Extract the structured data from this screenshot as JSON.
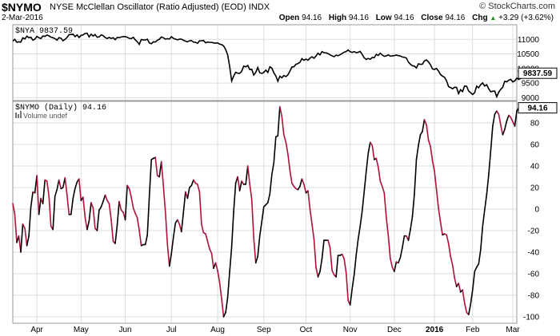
{
  "header": {
    "symbol": "$NYMO",
    "description": "NYSE McClellan Oscillator (Ratio Adjusted) (EOD)  INDX",
    "brand": "© StockCharts.com",
    "date": "2-Mar-2016",
    "open_label": "Open",
    "open": "94.16",
    "high_label": "High",
    "high": "94.16",
    "low_label": "Low",
    "low": "94.16",
    "close_label": "Close",
    "close": "94.16",
    "chg_label": "Chg",
    "chg": "+3.29 (+3.62%)",
    "chg_arrow": "▲"
  },
  "colors": {
    "up": "#000000",
    "down": "#b0103a",
    "grid": "#dddddd",
    "frame": "#999999"
  },
  "chart_data": [
    {
      "type": "line",
      "legend": "$NYA 9837.59",
      "last_value_label": "9837.59",
      "ylim": [
        8900,
        11500
      ],
      "y_ticks": [
        9000,
        9500,
        10000,
        10500,
        11000
      ],
      "x_tick_labels": [
        "Apr",
        "May",
        "Jun",
        "Jul",
        "Aug",
        "Sep",
        "Oct",
        "Nov",
        "Dec",
        "2016",
        "Feb",
        "Mar"
      ],
      "x_tick_index": [
        12,
        34,
        56,
        79,
        102,
        125,
        146,
        168,
        190,
        210,
        229,
        249
      ],
      "n_points": 252,
      "values": [
        10940,
        10998,
        10898,
        10916,
        10903,
        11051,
        11014,
        11108,
        11055,
        11069,
        10973,
        11008,
        11100,
        11054,
        11029,
        11114,
        11101,
        11143,
        11119,
        11075,
        11053,
        11025,
        10973,
        11058,
        11040,
        10953,
        10999,
        11063,
        11160,
        11165,
        11175,
        11093,
        11151,
        11061,
        11133,
        11151,
        11202,
        11210,
        11083,
        11176,
        11112,
        11163,
        11074,
        11084,
        11149,
        11128,
        11059,
        11030,
        11066,
        11032,
        11054,
        10987,
        11064,
        11059,
        11079,
        11093,
        11096,
        11067,
        11035,
        11024,
        11070,
        10984,
        10916,
        10827,
        10994,
        10984,
        10978,
        11005,
        10879,
        10849,
        10915,
        10906,
        10969,
        11002,
        11081,
        11053,
        11006,
        11020,
        11010,
        11090,
        11033,
        11007,
        10983,
        11004,
        11007,
        10969,
        10936,
        10914,
        10951,
        10957,
        10907,
        10899,
        10861,
        10946,
        10953,
        10960,
        10880,
        10906,
        10897,
        10893,
        10878,
        10864,
        10879,
        10834,
        10819,
        10773,
        10649,
        10463,
        10065,
        9572,
        9740,
        9868,
        9840,
        9833,
        9905,
        10080,
        10054,
        10101,
        9965,
        9971,
        9774,
        9867,
        10032,
        9856,
        9831,
        9862,
        9945,
        9863,
        10057,
        10013,
        9853,
        9744,
        9561,
        9734,
        9683,
        9757,
        9725,
        9783,
        9910,
        10050,
        10060,
        10143,
        10167,
        10210,
        10337,
        10282,
        10324,
        10281,
        10360,
        10402,
        10351,
        10428,
        10523,
        10466,
        10577,
        10542,
        10538,
        10510,
        10468,
        10432,
        10406,
        10456,
        10437,
        10470,
        10514,
        10557,
        10584,
        10634,
        10574,
        10549,
        10581,
        10545,
        10554,
        10586,
        10486,
        10368,
        10310,
        10344,
        10315,
        10377,
        10367,
        10484,
        10446,
        10527,
        10464,
        10418,
        10429,
        10468,
        10423,
        10436,
        10441,
        10459,
        10440,
        10426,
        10394,
        10382,
        10356,
        10218,
        10146,
        10094,
        10081,
        10018,
        10160,
        10140,
        10147,
        10259,
        10292,
        10228,
        10126,
        9987,
        9967,
        10000,
        9913,
        9795,
        9738,
        9702,
        9575,
        9378,
        9347,
        9301,
        9356,
        9352,
        9139,
        9272,
        9210,
        9398,
        9391,
        9229,
        9168,
        9111,
        9167,
        9392,
        9337,
        9441,
        9504,
        9398,
        9441,
        9302,
        9202,
        9221,
        9227,
        9032,
        9187,
        9286,
        9353,
        9561,
        9543,
        9600,
        9626,
        9540,
        9572,
        9670,
        9623,
        9666,
        9799,
        9817,
        9838
      ]
    },
    {
      "type": "line",
      "legend": "$NYMO (Daily) 94.16",
      "volume_label": "Volume undef",
      "last_value_label": "94.16",
      "ylim": [
        -106,
        100
      ],
      "y_ticks": [
        -100,
        -80,
        -60,
        -40,
        -20,
        0,
        20,
        40,
        60,
        80
      ],
      "x_tick_labels": [
        "Apr",
        "May",
        "Jun",
        "Jul",
        "Aug",
        "Sep",
        "Oct",
        "Nov",
        "Dec",
        "2016",
        "Feb",
        "Mar"
      ],
      "x_tick_index": [
        12,
        34,
        56,
        79,
        102,
        125,
        146,
        168,
        190,
        210,
        229,
        249
      ],
      "n_points": 252,
      "values": [
        5,
        -5,
        -31,
        -25,
        -40,
        -14,
        -18,
        -34,
        -25,
        2,
        16,
        15,
        31,
        -5,
        10,
        5,
        27,
        26,
        12,
        -16,
        -19,
        12,
        18,
        27,
        19,
        20,
        29,
        13,
        -5,
        -5,
        10,
        19,
        25,
        28,
        8,
        11,
        -8,
        -19,
        -11,
        6,
        1,
        -18,
        -20,
        -1,
        2,
        7,
        13,
        8,
        5,
        -10,
        -30,
        -32,
        -15,
        7,
        -1,
        -3,
        -10,
        22,
        19,
        11,
        1,
        -4,
        -8,
        -20,
        -34,
        -33,
        -33,
        -24,
        12,
        46,
        47,
        48,
        31,
        30,
        44,
        22,
        -3,
        -33,
        -53,
        -41,
        -26,
        -13,
        -10,
        -14,
        -21,
        -3,
        16,
        10,
        20,
        22,
        27,
        24,
        23,
        16,
        -14,
        -22,
        -23,
        -30,
        -37,
        -41,
        -55,
        -50,
        -57,
        -68,
        -83,
        -100,
        -96,
        -82,
        -58,
        -35,
        -2,
        24,
        30,
        17,
        26,
        23,
        23,
        40,
        23,
        9,
        -27,
        -50,
        -44,
        -25,
        -12,
        2,
        4,
        6,
        14,
        32,
        43,
        67,
        68,
        95,
        86,
        69,
        62,
        51,
        36,
        24,
        21,
        19,
        18,
        21,
        28,
        23,
        15,
        17,
        0,
        -14,
        -28,
        -54,
        -63,
        -58,
        -46,
        -29,
        -29,
        -29,
        -36,
        -57,
        -61,
        -63,
        -43,
        -43,
        -42,
        -46,
        -59,
        -85,
        -89,
        -74,
        -61,
        -43,
        -28,
        -16,
        -2,
        16,
        35,
        52,
        62,
        59,
        46,
        47,
        39,
        26,
        21,
        15,
        -8,
        -25,
        -46,
        -54,
        -58,
        -49,
        -50,
        -45,
        -36,
        -25,
        -25,
        -29,
        -19,
        -7,
        14,
        46,
        59,
        69,
        72,
        83,
        78,
        64,
        58,
        45,
        35,
        18,
        1,
        -12,
        -24,
        -23,
        -24,
        -32,
        -44,
        -52,
        -64,
        -72,
        -69,
        -77,
        -75,
        -87,
        -96,
        -98,
        -88,
        -75,
        -58,
        -54,
        -51,
        -38,
        -16,
        -1,
        14,
        32,
        54,
        77,
        88,
        91,
        88,
        78,
        69,
        74,
        82,
        87,
        85,
        81,
        77,
        91,
        94
      ]
    }
  ]
}
